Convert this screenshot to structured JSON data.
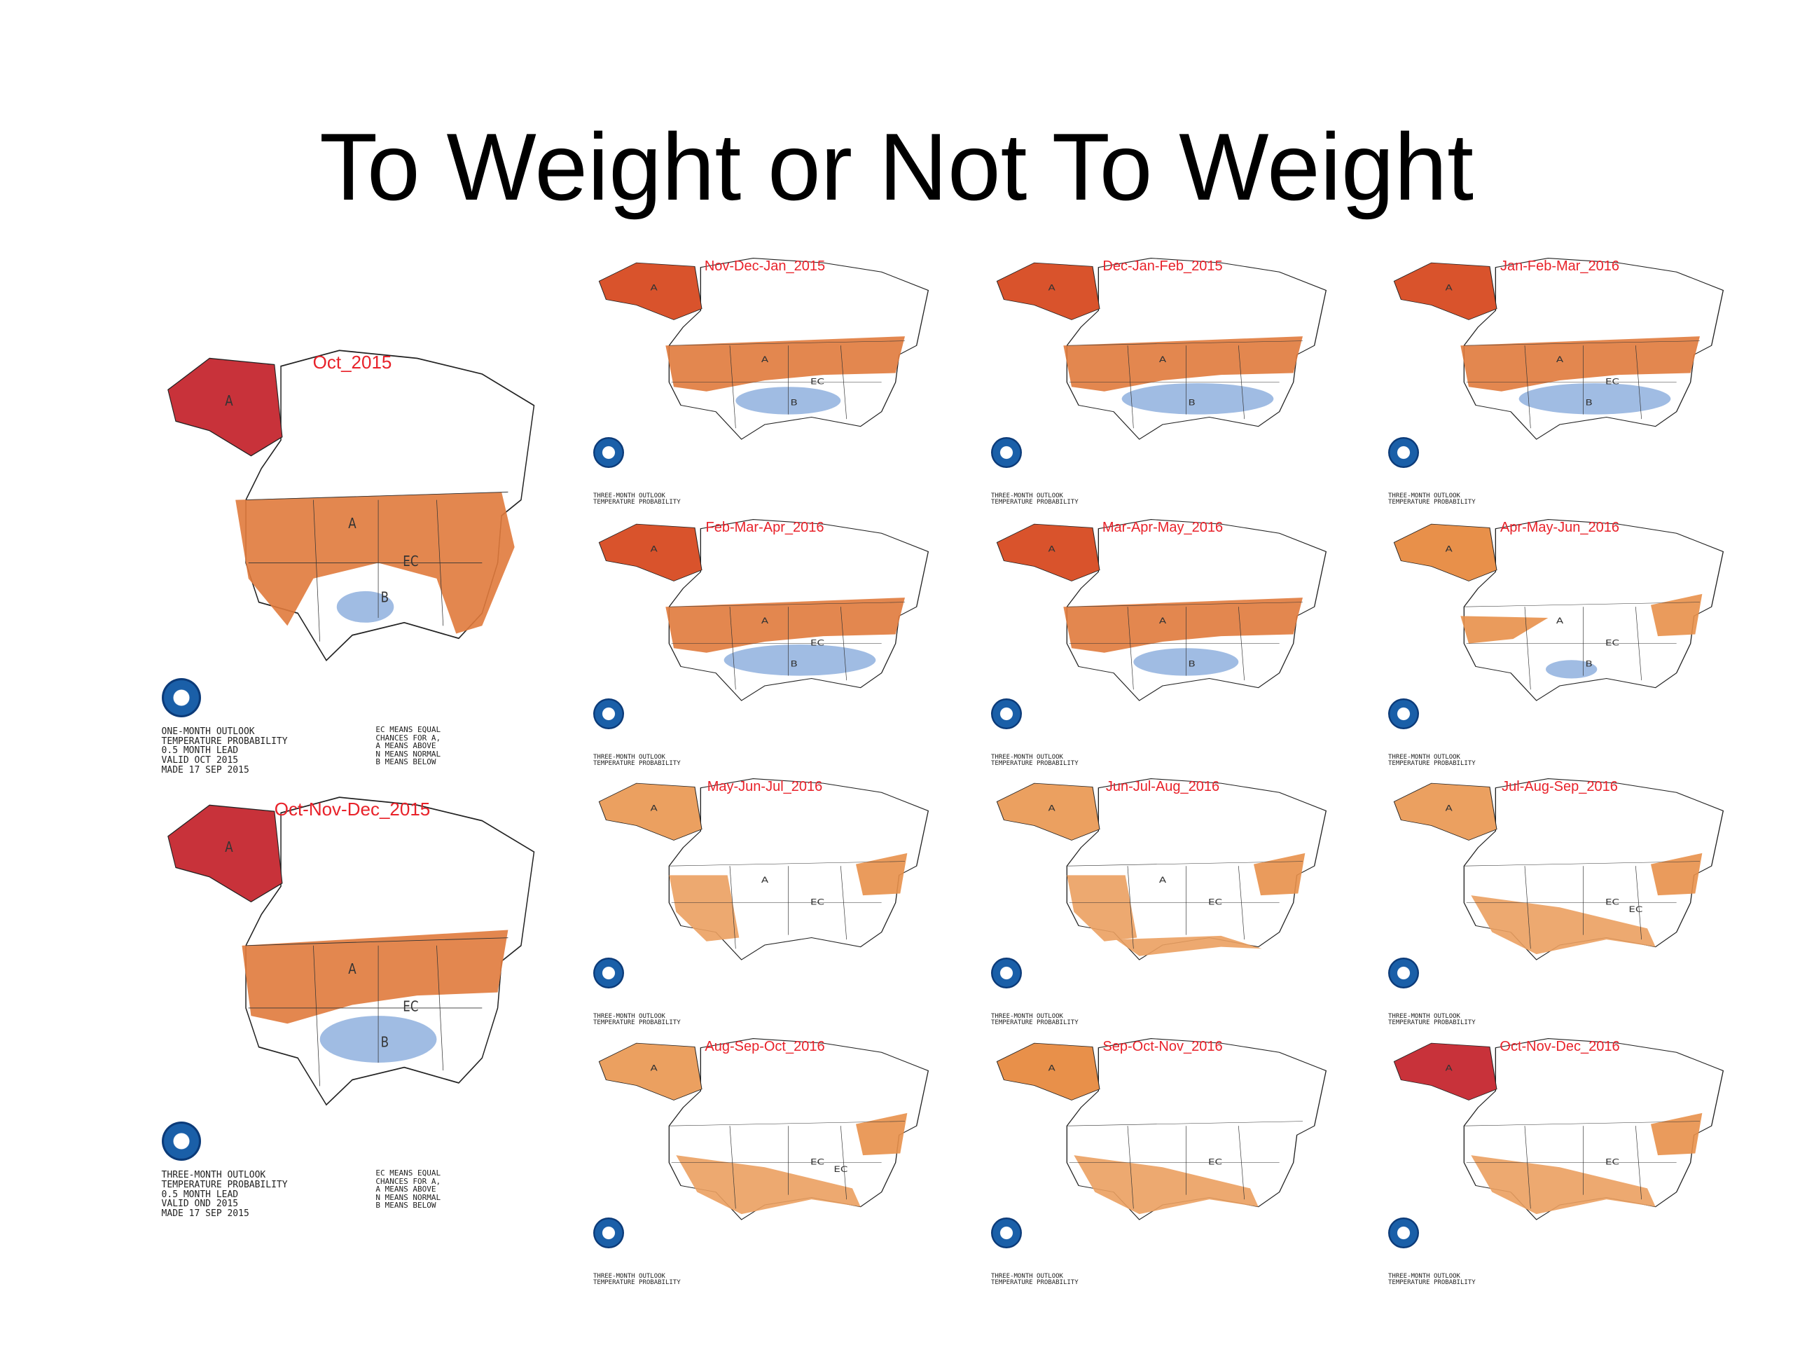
{
  "title": "To Weight or Not To Weight",
  "maps": [
    {
      "label": "Oct_2015",
      "caption": [
        "ONE-MONTH OUTLOOK",
        "TEMPERATURE PROBABILITY",
        "0.5 MONTH LEAD",
        "VALID OCT 2015",
        "MADE 17 SEP 2015"
      ],
      "legend": [
        "EC MEANS EQUAL",
        "CHANCES FOR A,",
        "A MEANS ABOVE",
        "N MEANS NORMAL",
        "B MEANS BELOW"
      ],
      "regions": [
        "A",
        "A",
        "EC",
        "B"
      ]
    },
    {
      "label": "Oct-Nov-Dec_2015",
      "caption": [
        "THREE-MONTH OUTLOOK",
        "TEMPERATURE PROBABILITY",
        "0.5 MONTH LEAD",
        "VALID OND 2015",
        "MADE 17 SEP 2015"
      ],
      "legend": [
        "EC MEANS EQUAL",
        "CHANCES FOR A,",
        "A MEANS ABOVE",
        "N MEANS NORMAL",
        "B MEANS BELOW"
      ],
      "regions": [
        "A",
        "A",
        "EC",
        "B"
      ]
    },
    {
      "label": "Nov-Dec-Jan_2015",
      "caption": [
        "THREE-MONTH OUTLOOK",
        "TEMPERATURE PROBABILITY"
      ],
      "regions": [
        "A",
        "A",
        "EC",
        "B"
      ]
    },
    {
      "label": "Dec-Jan-Feb_2015",
      "caption": [
        "THREE-MONTH OUTLOOK",
        "TEMPERATURE PROBABILITY"
      ],
      "regions": [
        "A",
        "A",
        "B"
      ]
    },
    {
      "label": "Jan-Feb-Mar_2016",
      "caption": [
        "THREE-MONTH OUTLOOK",
        "TEMPERATURE PROBABILITY"
      ],
      "regions": [
        "A",
        "A",
        "EC",
        "B"
      ]
    },
    {
      "label": "Feb-Mar-Apr_2016",
      "caption": [
        "THREE-MONTH OUTLOOK",
        "TEMPERATURE PROBABILITY"
      ],
      "regions": [
        "A",
        "A",
        "EC",
        "B"
      ]
    },
    {
      "label": "Mar-Apr-May_2016",
      "caption": [
        "THREE-MONTH OUTLOOK",
        "TEMPERATURE PROBABILITY"
      ],
      "regions": [
        "A",
        "A",
        "B"
      ]
    },
    {
      "label": "Apr-May-Jun_2016",
      "caption": [
        "THREE-MONTH OUTLOOK",
        "TEMPERATURE PROBABILITY"
      ],
      "regions": [
        "A",
        "A",
        "EC",
        "B"
      ]
    },
    {
      "label": "May-Jun-Jul_2016",
      "caption": [
        "THREE-MONTH OUTLOOK",
        "TEMPERATURE PROBABILITY"
      ],
      "regions": [
        "A",
        "A",
        "EC"
      ]
    },
    {
      "label": "Jun-Jul-Aug_2016",
      "caption": [
        "THREE-MONTH OUTLOOK",
        "TEMPERATURE PROBABILITY"
      ],
      "regions": [
        "A",
        "A",
        "EC"
      ]
    },
    {
      "label": "Jul-Aug-Sep_2016",
      "caption": [
        "THREE-MONTH OUTLOOK",
        "TEMPERATURE PROBABILITY"
      ],
      "regions": [
        "EC",
        "A",
        "EC"
      ]
    },
    {
      "label": "Aug-Sep-Oct_2016",
      "caption": [
        "THREE-MONTH OUTLOOK",
        "TEMPERATURE PROBABILITY"
      ],
      "regions": [
        "EC",
        "A",
        "EC"
      ]
    },
    {
      "label": "Sep-Oct-Nov_2016",
      "caption": [
        "THREE-MONTH OUTLOOK",
        "TEMPERATURE PROBABILITY"
      ],
      "regions": [
        "EC",
        "A"
      ]
    },
    {
      "label": "Oct-Nov-Dec_2016",
      "caption": [
        "THREE-MONTH OUTLOOK",
        "TEMPERATURE PROBABILITY"
      ],
      "regions": [
        "EC",
        "A"
      ]
    }
  ]
}
